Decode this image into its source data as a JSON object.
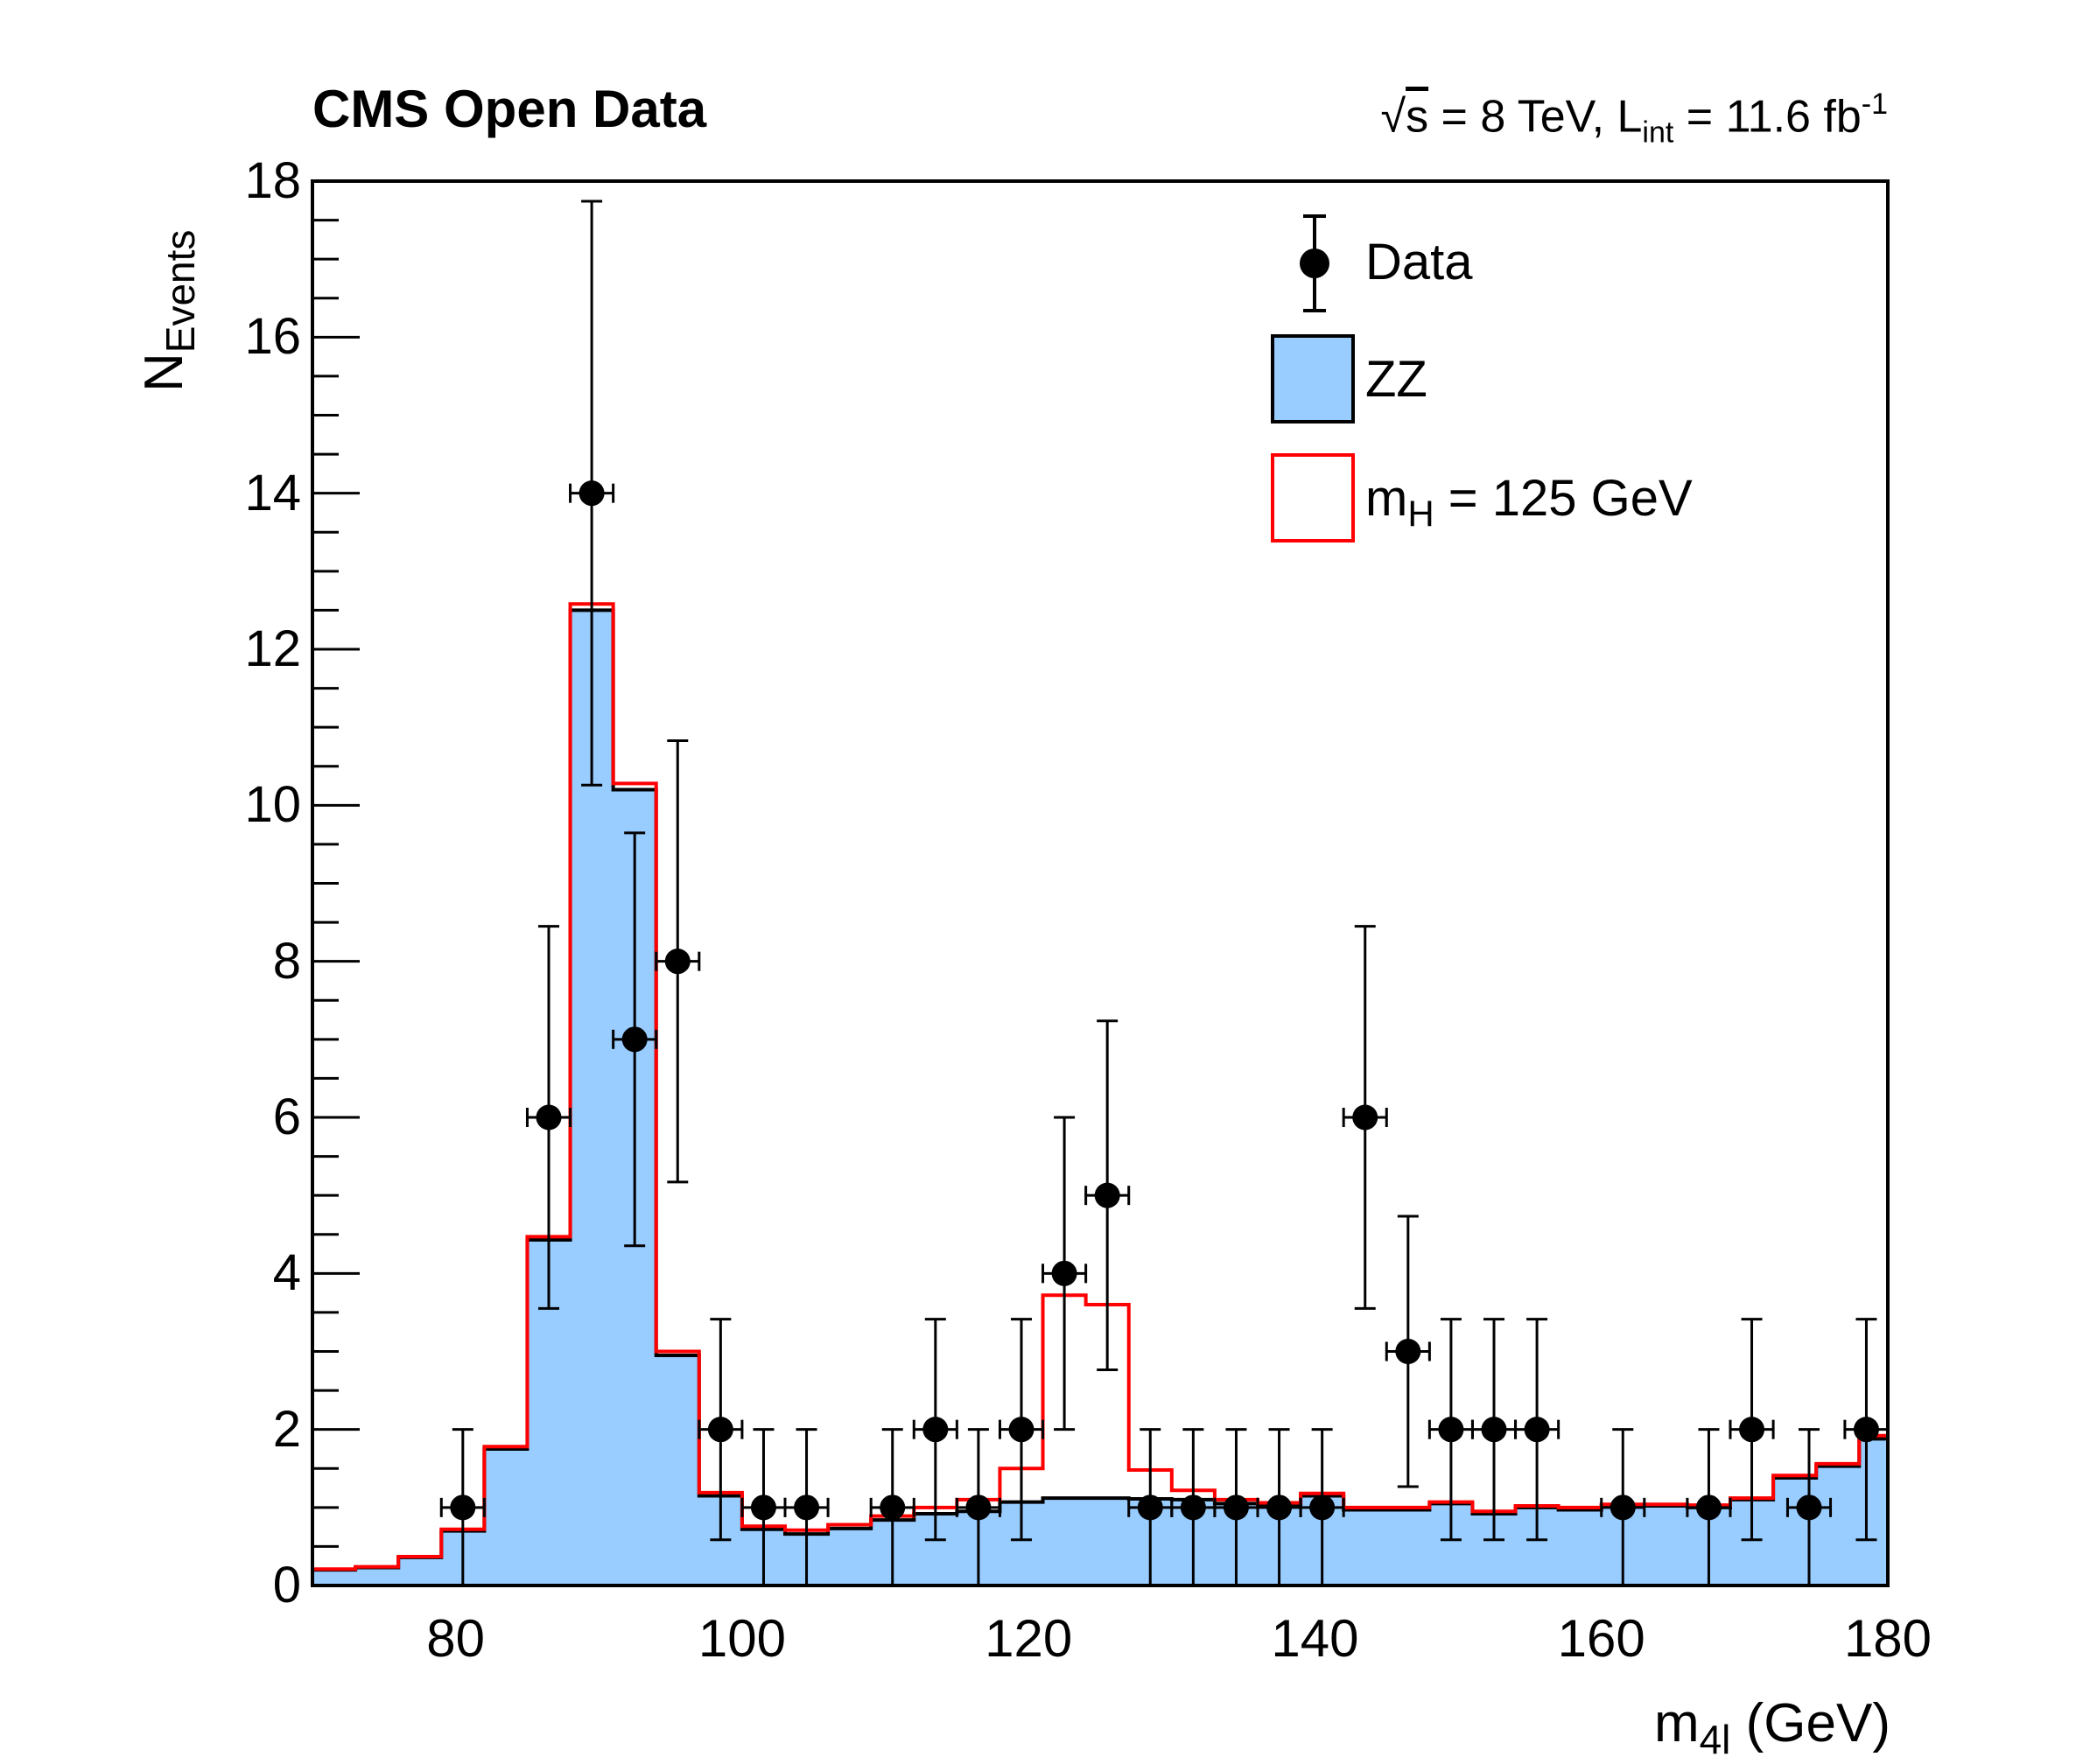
{
  "header": {
    "title": "CMS Open Data",
    "lumi": {
      "sqrt_sym": "√",
      "sqrt_arg": "s",
      "part1": " = 8 TeV, L",
      "sub": "int",
      "part2": " = 11.6 fb",
      "sup": "-1"
    }
  },
  "axes": {
    "y": {
      "title_main": "N",
      "title_sub": "Events",
      "min": 0,
      "max": 18,
      "major_step": 2,
      "minor_step": 0.5,
      "tick_labels": [
        "0",
        "2",
        "4",
        "6",
        "8",
        "10",
        "12",
        "14",
        "16",
        "18"
      ]
    },
    "x": {
      "title_main": "m",
      "title_sub": "4l",
      "title_post": " (GeV)",
      "min": 70,
      "max": 180,
      "major_ticks": [
        80,
        100,
        120,
        140,
        160,
        180
      ],
      "tick_labels": [
        "80",
        "100",
        "120",
        "140",
        "160",
        "180"
      ]
    }
  },
  "legend": {
    "items": [
      {
        "label": "Data",
        "type": "marker"
      },
      {
        "label": "ZZ",
        "type": "filled",
        "color": "#99CCFF"
      },
      {
        "label_pre": "m",
        "label_sub": "H",
        "label_post": " = 125 GeV",
        "type": "line",
        "color": "#FF0000"
      }
    ]
  },
  "colors": {
    "zz_fill": "#99CCFF",
    "signal_line": "#FF0000",
    "data_marker": "#000000",
    "frame": "#000000"
  },
  "chart_data": {
    "type": "histogram",
    "title": "CMS Open Data",
    "subtitle": "sqrt(s) = 8 TeV, L_int = 11.6 fb^-1",
    "xlabel": "m_4l (GeV)",
    "ylabel": "N_Events",
    "xlim": [
      70,
      180
    ],
    "ylim": [
      0,
      18
    ],
    "grid": false,
    "legend_position": "top-right",
    "bin_start": 70,
    "bin_width": 3,
    "n_bins": 37,
    "series": [
      {
        "name": "ZZ",
        "type": "filled_histogram",
        "fill": "#99CCFF",
        "border": "#000000",
        "values": [
          0.2,
          0.23,
          0.36,
          0.7,
          1.75,
          4.43,
          12.5,
          10.2,
          2.95,
          1.15,
          0.72,
          0.66,
          0.73,
          0.84,
          0.92,
          0.95,
          1.07,
          1.12,
          1.12,
          1.11,
          1.1,
          1.05,
          1.03,
          1.15,
          0.97,
          0.97,
          1.05,
          0.92,
          1.0,
          0.97,
          1.02,
          1.02,
          1.0,
          1.1,
          1.38,
          1.53,
          1.88
        ]
      },
      {
        "name": "mH = 125 GeV",
        "type": "step_histogram",
        "line": "#FF0000",
        "values": [
          0.21,
          0.24,
          0.37,
          0.72,
          1.78,
          4.47,
          12.58,
          10.28,
          3.0,
          1.19,
          0.76,
          0.71,
          0.78,
          0.89,
          1.0,
          1.1,
          1.5,
          3.72,
          3.6,
          1.48,
          1.22,
          1.1,
          1.06,
          1.18,
          1.0,
          1.0,
          1.07,
          0.95,
          1.02,
          1.0,
          1.04,
          1.04,
          1.03,
          1.12,
          1.41,
          1.56,
          1.92
        ]
      },
      {
        "name": "Data",
        "type": "scatter_with_errors",
        "marker": "black_filled_circle",
        "x": [
          80.5,
          86.5,
          89.5,
          92.5,
          95.5,
          98.5,
          101.5,
          104.5,
          110.5,
          113.5,
          116.5,
          119.5,
          122.5,
          125.5,
          128.5,
          131.5,
          134.5,
          137.5,
          140.5,
          143.5,
          146.5,
          149.5,
          152.5,
          155.5,
          161.5,
          167.5,
          170.5,
          174.5,
          178.5
        ],
        "y": [
          1,
          6,
          14,
          7,
          8,
          2,
          1,
          1,
          1,
          2,
          1,
          2,
          4,
          5,
          1,
          1,
          1,
          1,
          1,
          6,
          3,
          2,
          2,
          2,
          1,
          1,
          2,
          1,
          2
        ],
        "x_err": 1.5,
        "y_err": "sqrt(n)"
      }
    ]
  }
}
